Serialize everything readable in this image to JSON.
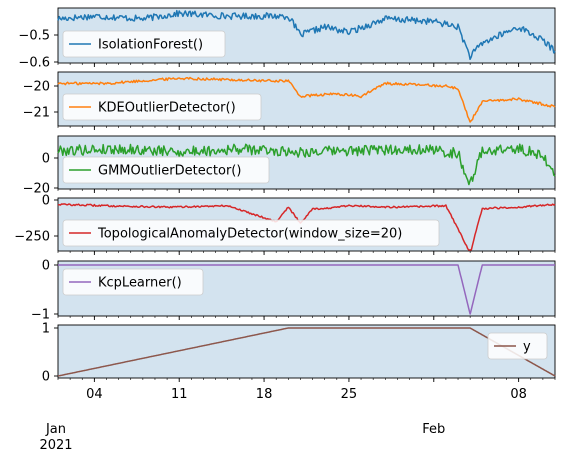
{
  "chart_data": {
    "type": "line",
    "x_axis": {
      "start": "2021-01-01",
      "end": "2021-02-11",
      "ticks": [
        {
          "date": "2021-01-04",
          "label": "04"
        },
        {
          "date": "2021-01-11",
          "label": "11"
        },
        {
          "date": "2021-01-18",
          "label": "18"
        },
        {
          "date": "2021-01-25",
          "label": "25"
        },
        {
          "date": "2021-02-01",
          "label": "Feb"
        },
        {
          "date": "2021-02-08",
          "label": "08"
        }
      ],
      "month_label": "Jan",
      "year_label": "2021"
    },
    "series": [
      {
        "name": "IsolationForest()",
        "color": "#1f77b4",
        "ylim": [
          -0.6,
          -0.4
        ],
        "yticks": [
          {
            "value": -0.5,
            "label": "−0.5"
          },
          {
            "value": -0.6,
            "label": "−0.6"
          }
        ],
        "x": [
          "2021-01-01",
          "2021-01-04",
          "2021-01-08",
          "2021-01-11",
          "2021-01-15",
          "2021-01-18",
          "2021-01-20",
          "2021-01-21",
          "2021-01-23",
          "2021-01-25",
          "2021-01-28",
          "2021-02-01",
          "2021-02-03",
          "2021-02-04",
          "2021-02-05",
          "2021-02-08",
          "2021-02-10",
          "2021-02-11"
        ],
        "y": [
          -0.44,
          -0.43,
          -0.44,
          -0.42,
          -0.43,
          -0.43,
          -0.43,
          -0.5,
          -0.47,
          -0.49,
          -0.44,
          -0.45,
          -0.47,
          -0.58,
          -0.53,
          -0.47,
          -0.52,
          -0.56
        ]
      },
      {
        "name": "KDEOutlierDetector()",
        "color": "#ff7f0e",
        "ylim": [
          -21.4,
          -19.5
        ],
        "yticks": [
          {
            "value": -20,
            "label": "−20"
          },
          {
            "value": -21,
            "label": "−21"
          }
        ],
        "x": [
          "2021-01-01",
          "2021-01-05",
          "2021-01-11",
          "2021-01-18",
          "2021-01-20",
          "2021-01-21",
          "2021-01-24",
          "2021-01-26",
          "2021-01-28",
          "2021-02-02",
          "2021-02-03",
          "2021-02-04",
          "2021-02-05",
          "2021-02-08",
          "2021-02-11"
        ],
        "y": [
          -19.9,
          -19.9,
          -19.7,
          -19.8,
          -19.8,
          -20.4,
          -20.3,
          -20.4,
          -19.9,
          -20.0,
          -20.1,
          -21.4,
          -20.6,
          -20.5,
          -20.8
        ]
      },
      {
        "name": "GMMOutlierDetector()",
        "color": "#2ca02c",
        "ylim": [
          -20,
          12
        ],
        "yticks": [
          {
            "value": 0,
            "label": "0"
          },
          {
            "value": -20,
            "label": "−20"
          }
        ],
        "x": [
          "2021-01-01",
          "2021-01-06",
          "2021-01-11",
          "2021-01-16",
          "2021-01-21",
          "2021-01-26",
          "2021-01-31",
          "2021-02-03",
          "2021-02-04",
          "2021-02-05",
          "2021-02-08",
          "2021-02-10",
          "2021-02-11"
        ],
        "y": [
          5,
          6,
          4,
          6,
          4,
          5,
          6,
          3,
          -18,
          5,
          6,
          2,
          -12
        ]
      },
      {
        "name": "TopologicalAnomalyDetector(window_size=20)",
        "color": "#d62728",
        "ylim": [
          -400,
          0
        ],
        "yticks": [
          {
            "value": 0,
            "label": "0"
          },
          {
            "value": -250,
            "label": "−250"
          }
        ],
        "x": [
          "2021-01-01",
          "2021-01-05",
          "2021-01-10",
          "2021-01-15",
          "2021-01-19",
          "2021-01-20",
          "2021-01-21",
          "2021-01-22",
          "2021-01-23",
          "2021-01-25",
          "2021-01-29",
          "2021-02-02",
          "2021-02-03",
          "2021-02-04",
          "2021-02-05",
          "2021-02-08",
          "2021-02-11"
        ],
        "y": [
          -30,
          -40,
          -50,
          -40,
          -150,
          -50,
          -160,
          -60,
          -60,
          -40,
          -50,
          -40,
          -200,
          -370,
          -60,
          -50,
          -30
        ]
      },
      {
        "name": "KcpLearner()",
        "color": "#9467bd",
        "ylim": [
          -1,
          0
        ],
        "yticks": [
          {
            "value": 0,
            "label": "0"
          },
          {
            "value": -1,
            "label": "−1"
          }
        ],
        "x": [
          "2021-01-01",
          "2021-02-03",
          "2021-02-04",
          "2021-02-05",
          "2021-02-11"
        ],
        "y": [
          0,
          0,
          -1,
          0,
          0
        ]
      },
      {
        "name": "y",
        "color": "#8c564b",
        "ylim": [
          0,
          1
        ],
        "yticks": [
          {
            "value": 1,
            "label": "1"
          },
          {
            "value": 0,
            "label": "0"
          }
        ],
        "x": [
          "2021-01-01",
          "2021-01-20",
          "2021-01-24",
          "2021-02-03",
          "2021-02-04",
          "2021-02-11"
        ],
        "y": [
          0,
          1,
          1,
          1,
          1,
          0
        ]
      }
    ],
    "legend_placement": "upper-left (last panel: upper-right)",
    "grid": false
  }
}
